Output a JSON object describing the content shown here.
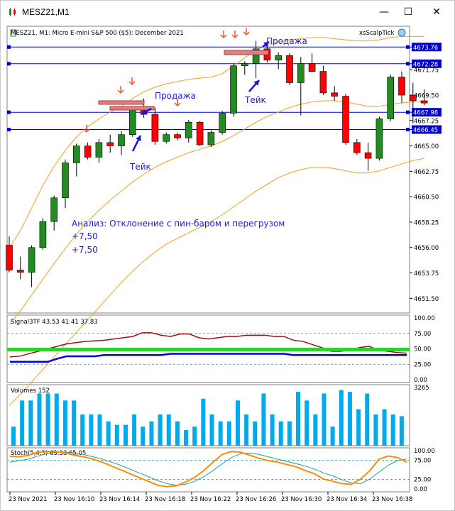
{
  "window": {
    "title": "MESZ21,M1",
    "controls": {
      "minimize": "—",
      "maximize": "☐",
      "close": "✕"
    }
  },
  "chart_header": {
    "symbol_info": "MESZ21, M1:  Micro E-mini S&P 500 ($5): December 2021",
    "indicator_label": "xsScalpTick"
  },
  "price_axis": {
    "ticks": [
      "4673.76",
      "4672.28",
      "4671.75",
      "4669.50",
      "4667.98",
      "4667.25",
      "4666.45",
      "4665.00",
      "4662.75",
      "4660.50",
      "4658.25",
      "4656.00",
      "4653.75",
      "4651.50"
    ],
    "highlighted": [
      "4673.76",
      "4672.28",
      "4667.98",
      "4666.45"
    ],
    "levels": [
      4673.76,
      4672.28,
      4667.98,
      4666.45
    ],
    "level_color": "#0000c8",
    "bull_color": "#228b22",
    "bear_color": "#ff0000"
  },
  "candles": [
    {
      "o": 4656.2,
      "h": 4657.0,
      "l": 4653.8,
      "c": 4654.0
    },
    {
      "o": 4654.0,
      "h": 4655.2,
      "l": 4653.2,
      "c": 4653.8
    },
    {
      "o": 4653.8,
      "h": 4656.2,
      "l": 4652.5,
      "c": 4656.0
    },
    {
      "o": 4656.0,
      "h": 4658.6,
      "l": 4655.8,
      "c": 4658.3
    },
    {
      "o": 4658.3,
      "h": 4660.6,
      "l": 4657.5,
      "c": 4660.4
    },
    {
      "o": 4660.4,
      "h": 4663.8,
      "l": 4659.5,
      "c": 4663.5
    },
    {
      "o": 4663.5,
      "h": 4665.2,
      "l": 4662.3,
      "c": 4665.0
    },
    {
      "o": 4665.0,
      "h": 4665.3,
      "l": 4663.8,
      "c": 4664.0
    },
    {
      "o": 4664.0,
      "h": 4665.6,
      "l": 4663.5,
      "c": 4665.3
    },
    {
      "o": 4665.3,
      "h": 4666.0,
      "l": 4664.4,
      "c": 4665.0
    },
    {
      "o": 4665.0,
      "h": 4666.3,
      "l": 4664.2,
      "c": 4666.0
    },
    {
      "o": 4666.0,
      "h": 4668.4,
      "l": 4665.8,
      "c": 4668.3
    },
    {
      "o": 4668.3,
      "h": 4669.2,
      "l": 4667.5,
      "c": 4667.8
    },
    {
      "o": 4667.8,
      "h": 4668.4,
      "l": 4665.1,
      "c": 4665.4
    },
    {
      "o": 4665.4,
      "h": 4666.2,
      "l": 4665.2,
      "c": 4666.0
    },
    {
      "o": 4666.0,
      "h": 4666.2,
      "l": 4665.5,
      "c": 4665.7
    },
    {
      "o": 4665.7,
      "h": 4667.3,
      "l": 4665.3,
      "c": 4667.1
    },
    {
      "o": 4667.1,
      "h": 4667.2,
      "l": 4665.0,
      "c": 4665.1
    },
    {
      "o": 4665.1,
      "h": 4666.4,
      "l": 4664.9,
      "c": 4666.2
    },
    {
      "o": 4666.2,
      "h": 4668.1,
      "l": 4666.0,
      "c": 4667.9
    },
    {
      "o": 4667.9,
      "h": 4672.3,
      "l": 4667.6,
      "c": 4672.1
    },
    {
      "o": 4672.1,
      "h": 4672.5,
      "l": 4671.3,
      "c": 4672.3
    },
    {
      "o": 4672.3,
      "h": 4674.3,
      "l": 4671.0,
      "c": 4673.6
    },
    {
      "o": 4673.6,
      "h": 4674.0,
      "l": 4672.4,
      "c": 4672.6
    },
    {
      "o": 4672.6,
      "h": 4673.3,
      "l": 4671.8,
      "c": 4673.0
    },
    {
      "o": 4673.0,
      "h": 4673.2,
      "l": 4670.4,
      "c": 4670.6
    },
    {
      "o": 4670.6,
      "h": 4672.9,
      "l": 4667.7,
      "c": 4672.3
    },
    {
      "o": 4672.3,
      "h": 4673.2,
      "l": 4671.5,
      "c": 4671.6
    },
    {
      "o": 4671.6,
      "h": 4672.1,
      "l": 4669.5,
      "c": 4669.7
    },
    {
      "o": 4669.7,
      "h": 4670.3,
      "l": 4669.0,
      "c": 4669.4
    },
    {
      "o": 4669.4,
      "h": 4669.6,
      "l": 4665.1,
      "c": 4665.3
    },
    {
      "o": 4665.3,
      "h": 4665.6,
      "l": 4664.2,
      "c": 4664.4
    },
    {
      "o": 4664.4,
      "h": 4665.3,
      "l": 4662.8,
      "c": 4663.9
    },
    {
      "o": 4663.9,
      "h": 4667.6,
      "l": 4663.7,
      "c": 4667.4
    },
    {
      "o": 4667.4,
      "h": 4671.3,
      "l": 4667.2,
      "c": 4671.1
    },
    {
      "o": 4671.1,
      "h": 4671.6,
      "l": 4668.8,
      "c": 4669.5
    },
    {
      "o": 4669.5,
      "h": 4670.6,
      "l": 4667.0,
      "c": 4669.0
    },
    {
      "o": 4669.0,
      "h": 4670.0,
      "l": 4668.6,
      "c": 4668.8
    }
  ],
  "bands": {
    "color": "#f0a020",
    "upper": [
      4656,
      4657.5,
      4659.5,
      4661.5,
      4663.2,
      4664.6,
      4665.8,
      4666.7,
      4667.4,
      4668.0,
      4668.5,
      4669.2,
      4669.8,
      4670.2,
      4670.5,
      4670.7,
      4670.9,
      4671.0,
      4671.1,
      4671.4,
      4672.1,
      4672.8,
      4673.5,
      4673.9,
      4674.2,
      4674.4,
      4674.5,
      4674.6,
      4674.6,
      4674.5,
      4674.4,
      4674.3,
      4674.3,
      4674.4,
      4674.6,
      4674.7,
      4674.7,
      4674.7
    ],
    "middle": [
      4649.2,
      4650.4,
      4651.8,
      4653.2,
      4654.6,
      4655.9,
      4657.2,
      4658.3,
      4659.3,
      4660.2,
      4661.0,
      4661.8,
      4662.5,
      4663.1,
      4663.6,
      4664.0,
      4664.4,
      4664.7,
      4665.0,
      4665.4,
      4665.9,
      4666.5,
      4667.1,
      4667.6,
      4668.0,
      4668.4,
      4668.7,
      4668.9,
      4669.0,
      4669.0,
      4668.9,
      4668.7,
      4668.5,
      4668.5,
      4668.7,
      4668.8,
      4668.9,
      4668.9
    ],
    "lower": [
      4642,
      4643,
      4644.1,
      4645.2,
      4646.3,
      4647.4,
      4648.5,
      4649.6,
      4650.7,
      4651.8,
      4652.9,
      4653.9,
      4654.8,
      4655.6,
      4656.3,
      4656.8,
      4657.3,
      4657.8,
      4658.3,
      4658.9,
      4659.6,
      4660.3,
      4661,
      4661.6,
      4662.2,
      4662.6,
      4662.9,
      4663.1,
      4663.1,
      4663.0,
      4662.8,
      4662.6,
      4662.6,
      4662.8,
      4663.1,
      4663.4,
      4663.7,
      4663.9
    ]
  },
  "annotations": {
    "sell_label_1": "Продажа",
    "sell_label_2": "Продажа",
    "take_label_1": "Тейк",
    "take_label_2": "Тейк",
    "analysis_text": "Анализ: Отклонение с пин-баром и перегрузом",
    "result_1": "+7,50",
    "result_2": "+7,50",
    "text_color": "#2020d0",
    "arrow_color": "#ff5020"
  },
  "signal_panel": {
    "label": "Signal3TF 43.53 41.41 37.83",
    "axis_ticks": [
      "100.00",
      "75.00",
      "50.00",
      "25.00",
      "0.00"
    ],
    "red_series": [
      37,
      38,
      42,
      46,
      50,
      54,
      58,
      60,
      62,
      63,
      64,
      66,
      68,
      70,
      76,
      76,
      72,
      70,
      74,
      74,
      68,
      66,
      68,
      70,
      70,
      72,
      72,
      72,
      70,
      70,
      64,
      62,
      57,
      52,
      46,
      46,
      48,
      52,
      54,
      48,
      46,
      44,
      43
    ],
    "green_level": 46,
    "blue_series": [
      29,
      29,
      29,
      29,
      29,
      34,
      38,
      38,
      38,
      38,
      40,
      40,
      40,
      40,
      40,
      40,
      40,
      42,
      42,
      42,
      42,
      42,
      42,
      42,
      42,
      42,
      42,
      42,
      42,
      42,
      40,
      40,
      40,
      40,
      40,
      40,
      40,
      40,
      40,
      40,
      40,
      40,
      40
    ]
  },
  "volume_panel": {
    "label": "Volumes 152",
    "axis_max": "3265",
    "bar_color": "#00aaee",
    "values": [
      1100,
      2600,
      2600,
      3000,
      3000,
      3000,
      2600,
      2600,
      1800,
      1800,
      1800,
      1400,
      1200,
      1200,
      1800,
      1100,
      1400,
      1800,
      1800,
      1400,
      900,
      1100,
      2700,
      1800,
      1400,
      1400,
      2600,
      1800,
      1400,
      3000,
      1800,
      1400,
      1400,
      3100,
      2600,
      1800,
      3000,
      1100,
      3200,
      3100,
      2100,
      3000,
      1800,
      2100,
      1800,
      1700
    ]
  },
  "stoch_panel": {
    "label": "Stoch(5,4,3) 63.33 65.05",
    "axis_ticks": [
      "100.00",
      "75.00",
      "25.00",
      "0.00"
    ],
    "main_color": "#ff8c00",
    "signal_color": "#20a0a0",
    "main_series": [
      85,
      84,
      88,
      96,
      98,
      98,
      94,
      88,
      84,
      78,
      70,
      60,
      50,
      40,
      30,
      20,
      10,
      6,
      8,
      18,
      30,
      48,
      70,
      90,
      98,
      96,
      88,
      80,
      74,
      70,
      64,
      58,
      48,
      40,
      26,
      20,
      14,
      12,
      26,
      48,
      78,
      86,
      82,
      70
    ],
    "signal_series": [
      70,
      74,
      78,
      86,
      92,
      96,
      96,
      94,
      90,
      84,
      78,
      70,
      62,
      52,
      42,
      32,
      22,
      14,
      10,
      12,
      20,
      32,
      48,
      66,
      82,
      92,
      94,
      90,
      84,
      78,
      72,
      66,
      60,
      52,
      42,
      34,
      24,
      16,
      14,
      26,
      44,
      62,
      74,
      78
    ]
  },
  "time_axis": {
    "labels": [
      "23 Nov 2021",
      "23 Nov 16:10",
      "23 Nov 16:14",
      "23 Nov 16:18",
      "23 Nov 16:22",
      "23 Nov 16:26",
      "23 Nov 16:30",
      "23 Nov 16:34",
      "23 Nov 16:38"
    ]
  }
}
